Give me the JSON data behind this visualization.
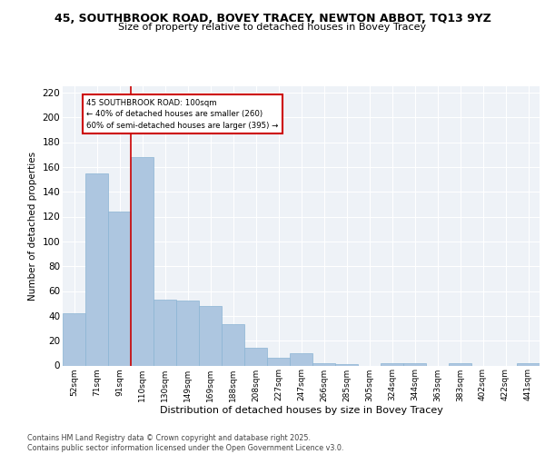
{
  "title": "45, SOUTHBROOK ROAD, BOVEY TRACEY, NEWTON ABBOT, TQ13 9YZ",
  "subtitle": "Size of property relative to detached houses in Bovey Tracey",
  "xlabel": "Distribution of detached houses by size in Bovey Tracey",
  "ylabel": "Number of detached properties",
  "categories": [
    "52sqm",
    "71sqm",
    "91sqm",
    "110sqm",
    "130sqm",
    "149sqm",
    "169sqm",
    "188sqm",
    "208sqm",
    "227sqm",
    "247sqm",
    "266sqm",
    "285sqm",
    "305sqm",
    "324sqm",
    "344sqm",
    "363sqm",
    "383sqm",
    "402sqm",
    "422sqm",
    "441sqm"
  ],
  "values": [
    42,
    155,
    124,
    168,
    53,
    52,
    48,
    33,
    14,
    6,
    10,
    2,
    1,
    0,
    2,
    2,
    0,
    2,
    0,
    0,
    2
  ],
  "bar_color": "#adc6e0",
  "bar_edgecolor": "#8ab4d4",
  "vline_x": 2.5,
  "vline_color": "#cc0000",
  "annotation_text": "45 SOUTHBROOK ROAD: 100sqm\n← 40% of detached houses are smaller (260)\n60% of semi-detached houses are larger (395) →",
  "annotation_box_color": "#cc0000",
  "ylim": [
    0,
    225
  ],
  "yticks": [
    0,
    20,
    40,
    60,
    80,
    100,
    120,
    140,
    160,
    180,
    200,
    220
  ],
  "background_color": "#eef2f7",
  "grid_color": "#ffffff",
  "footer": "Contains HM Land Registry data © Crown copyright and database right 2025.\nContains public sector information licensed under the Open Government Licence v3.0.",
  "title_fontsize": 9,
  "subtitle_fontsize": 8
}
